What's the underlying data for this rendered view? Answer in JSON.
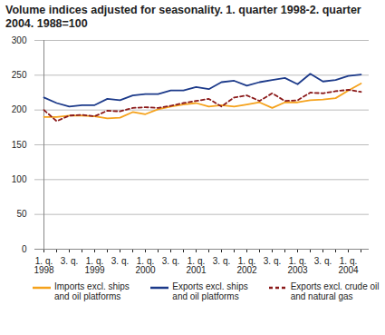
{
  "chart_data": {
    "type": "line",
    "title": "Volume indices adjusted for seasonality. 1. quarter 1998-2. quarter 2004. 1988=100",
    "categories": [
      "1. q.\n1998",
      null,
      "3. q.",
      null,
      "1. q.\n1999",
      null,
      "3. q.",
      null,
      "1. q.\n2000",
      null,
      "3. q.",
      null,
      "1. q.\n2001",
      null,
      "3. q.",
      null,
      "1. q.\n2002",
      null,
      "3. q.",
      null,
      "1. q.\n2003",
      null,
      "3. q.",
      null,
      "1. q.\n2004",
      null
    ],
    "series": [
      {
        "name": "Imports excl. ships and oil platforms",
        "color": "#f5a21c",
        "line_style": "solid",
        "values": [
          190,
          190,
          192,
          192,
          191,
          188,
          189,
          197,
          194,
          201,
          205,
          208,
          210,
          205,
          207,
          205,
          208,
          211,
          203,
          211,
          211,
          214,
          215,
          217,
          228,
          238
        ]
      },
      {
        "name": "Exports excl. ships and oil platforms",
        "color": "#1c3a8a",
        "line_style": "solid",
        "values": [
          218,
          210,
          205,
          207,
          207,
          216,
          214,
          221,
          223,
          223,
          228,
          228,
          233,
          230,
          240,
          242,
          235,
          240,
          243,
          246,
          237,
          252,
          241,
          243,
          249,
          251
        ]
      },
      {
        "name": "Exports excl. crude oil and natural gas",
        "color": "#8b1a1a",
        "line_style": "dashed",
        "values": [
          200,
          184,
          192,
          193,
          191,
          199,
          198,
          203,
          204,
          203,
          206,
          210,
          213,
          216,
          205,
          218,
          221,
          213,
          224,
          213,
          214,
          225,
          224,
          227,
          229,
          226
        ]
      }
    ],
    "ylim": [
      0,
      300
    ],
    "yticks": [
      0,
      50,
      100,
      150,
      200,
      250,
      300
    ],
    "grid": true,
    "legend": "bottom"
  }
}
